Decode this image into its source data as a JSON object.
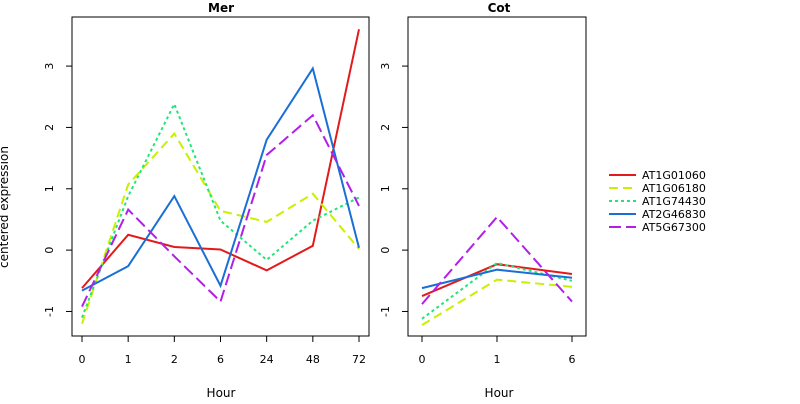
{
  "chart_data": [
    {
      "type": "line",
      "title": "Mer",
      "xlabel": "Hour",
      "ylabel": "centered expression",
      "categories": [
        "0",
        "1",
        "2",
        "6",
        "24",
        "48",
        "72"
      ],
      "ylim": [
        -1.4,
        3.8
      ],
      "yticks": [
        -1,
        0,
        1,
        2,
        3
      ],
      "grid": false,
      "series": [
        {
          "name": "AT1G01060",
          "color": "#e31a1c",
          "dash": "solid",
          "values": [
            -0.62,
            0.25,
            0.05,
            0.01,
            -0.33,
            0.07,
            3.6
          ]
        },
        {
          "name": "AT1G06180",
          "color": "#c8f000",
          "dash": "dashed",
          "values": [
            -1.2,
            1.07,
            1.9,
            0.64,
            0.46,
            0.92,
            0.02
          ]
        },
        {
          "name": "AT1G74430",
          "color": "#22e57a",
          "dash": "dotted",
          "values": [
            -1.1,
            0.88,
            2.38,
            0.48,
            -0.16,
            0.48,
            0.86
          ]
        },
        {
          "name": "AT2G46830",
          "color": "#1a6fd6",
          "dash": "solid",
          "values": [
            -0.66,
            -0.26,
            0.88,
            -0.58,
            1.8,
            2.96,
            0.04
          ]
        },
        {
          "name": "AT5G67300",
          "color": "#b020e8",
          "dash": "longdash",
          "values": [
            -0.92,
            0.66,
            -0.1,
            -0.84,
            1.55,
            2.2,
            0.72
          ]
        }
      ]
    },
    {
      "type": "line",
      "title": "Cot",
      "xlabel": "Hour",
      "ylabel": "",
      "categories": [
        "0",
        "1",
        "6"
      ],
      "ylim": [
        -1.4,
        3.8
      ],
      "yticks": [
        -1,
        0,
        1,
        2,
        3
      ],
      "grid": false,
      "series": [
        {
          "name": "AT1G01060",
          "color": "#e31a1c",
          "dash": "solid",
          "values": [
            -0.75,
            -0.23,
            -0.39
          ]
        },
        {
          "name": "AT1G06180",
          "color": "#c8f000",
          "dash": "dashed",
          "values": [
            -1.22,
            -0.48,
            -0.6
          ]
        },
        {
          "name": "AT1G74430",
          "color": "#22e57a",
          "dash": "dotted",
          "values": [
            -1.12,
            -0.21,
            -0.5
          ]
        },
        {
          "name": "AT2G46830",
          "color": "#1a6fd6",
          "dash": "solid",
          "values": [
            -0.62,
            -0.32,
            -0.45
          ]
        },
        {
          "name": "AT5G67300",
          "color": "#b020e8",
          "dash": "longdash",
          "values": [
            -0.88,
            0.54,
            -0.84
          ]
        }
      ]
    }
  ],
  "legend": {
    "placement": "right",
    "entries": [
      {
        "name": "AT1G01060",
        "color": "#e31a1c",
        "dash": "solid"
      },
      {
        "name": "AT1G06180",
        "color": "#c8f000",
        "dash": "dashed"
      },
      {
        "name": "AT1G74430",
        "color": "#22e57a",
        "dash": "dotted"
      },
      {
        "name": "AT2G46830",
        "color": "#1a6fd6",
        "dash": "solid"
      },
      {
        "name": "AT5G67300",
        "color": "#b020e8",
        "dash": "longdash"
      }
    ]
  }
}
